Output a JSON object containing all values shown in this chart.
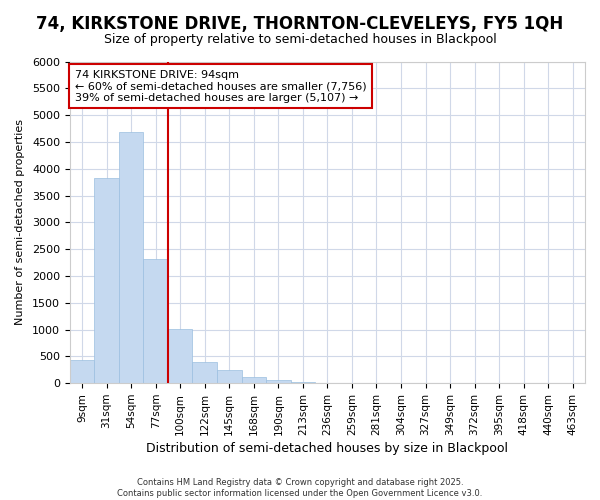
{
  "title": "74, KIRKSTONE DRIVE, THORNTON-CLEVELEYS, FY5 1QH",
  "subtitle": "Size of property relative to semi-detached houses in Blackpool",
  "xlabel": "Distribution of semi-detached houses by size in Blackpool",
  "ylabel": "Number of semi-detached properties",
  "annotation_line1": "74 KIRKSTONE DRIVE: 94sqm",
  "annotation_line2": "← 60% of semi-detached houses are smaller (7,756)",
  "annotation_line3": "39% of semi-detached houses are larger (5,107) →",
  "footer_line1": "Contains HM Land Registry data © Crown copyright and database right 2025.",
  "footer_line2": "Contains public sector information licensed under the Open Government Licence v3.0.",
  "categories": [
    "9sqm",
    "31sqm",
    "54sqm",
    "77sqm",
    "100sqm",
    "122sqm",
    "145sqm",
    "168sqm",
    "190sqm",
    "213sqm",
    "236sqm",
    "259sqm",
    "281sqm",
    "304sqm",
    "327sqm",
    "349sqm",
    "372sqm",
    "395sqm",
    "418sqm",
    "440sqm",
    "463sqm"
  ],
  "values": [
    430,
    3820,
    4680,
    2310,
    1010,
    400,
    250,
    115,
    60,
    20,
    5,
    2,
    1,
    0,
    0,
    0,
    0,
    0,
    0,
    0,
    0
  ],
  "bar_color": "#c5d9f0",
  "bar_edge_color": "#9bbfe0",
  "property_line_color": "#cc0000",
  "property_bin_index": 3,
  "ylim": [
    0,
    6000
  ],
  "yticks": [
    0,
    500,
    1000,
    1500,
    2000,
    2500,
    3000,
    3500,
    4000,
    4500,
    5000,
    5500,
    6000
  ],
  "background_color": "#ffffff",
  "grid_color": "#d0d8e8",
  "annotation_box_color": "#cc0000",
  "title_fontsize": 12,
  "subtitle_fontsize": 9
}
